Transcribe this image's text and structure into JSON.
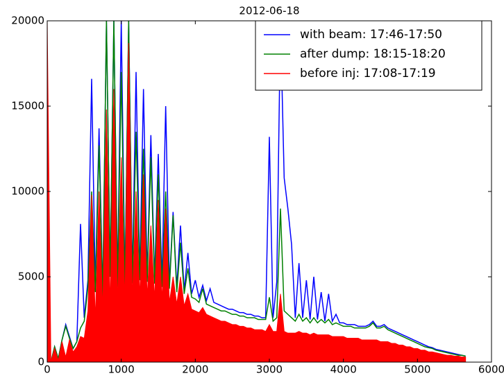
{
  "chart_data": {
    "type": "line",
    "title": "2012-06-18",
    "x": [
      0,
      50,
      100,
      150,
      200,
      250,
      300,
      350,
      400,
      450,
      500,
      550,
      600,
      650,
      700,
      750,
      800,
      850,
      900,
      950,
      1000,
      1050,
      1100,
      1150,
      1200,
      1250,
      1300,
      1350,
      1400,
      1450,
      1500,
      1550,
      1600,
      1650,
      1700,
      1750,
      1800,
      1850,
      1900,
      1950,
      2000,
      2050,
      2100,
      2150,
      2200,
      2250,
      2300,
      2350,
      2400,
      2450,
      2500,
      2550,
      2600,
      2650,
      2700,
      2750,
      2800,
      2850,
      2900,
      2950,
      3000,
      3050,
      3100,
      3150,
      3200,
      3250,
      3300,
      3350,
      3400,
      3450,
      3500,
      3550,
      3600,
      3650,
      3700,
      3750,
      3800,
      3850,
      3900,
      3950,
      4000,
      4050,
      4100,
      4150,
      4200,
      4250,
      4300,
      4350,
      4400,
      4450,
      4500,
      4550,
      4600,
      4650,
      4700,
      4750,
      4800,
      4850,
      4900,
      4950,
      5000,
      5050,
      5100,
      5150,
      5200,
      5250,
      5300,
      5350,
      5400,
      5450,
      5500,
      5550,
      5600,
      5650
    ],
    "series": [
      {
        "name": "with beam: 17:46-17:50",
        "color": "#0000ff",
        "style": "line",
        "values": [
          0,
          0,
          900,
          200,
          1300,
          2200,
          1500,
          800,
          1200,
          8100,
          2600,
          4800,
          16600,
          4400,
          13700,
          4000,
          20000,
          5200,
          20000,
          4700,
          20000,
          4600,
          20000,
          4900,
          17000,
          5000,
          16000,
          5000,
          13300,
          4900,
          12200,
          4700,
          15000,
          4600,
          8800,
          4400,
          8000,
          4200,
          6400,
          4000,
          4800,
          3800,
          4500,
          3600,
          4300,
          3500,
          3400,
          3300,
          3200,
          3100,
          3100,
          3000,
          2900,
          2900,
          2800,
          2800,
          2700,
          2700,
          2600,
          2600,
          13200,
          2600,
          4700,
          20000,
          10800,
          9000,
          6900,
          2600,
          5800,
          2600,
          4800,
          2500,
          5000,
          2500,
          4100,
          2400,
          4000,
          2400,
          2800,
          2300,
          2300,
          2200,
          2200,
          2200,
          2100,
          2100,
          2100,
          2200,
          2400,
          2100,
          2100,
          2200,
          2000,
          1900,
          1800,
          1700,
          1600,
          1500,
          1400,
          1300,
          1200,
          1100,
          1000,
          900,
          850,
          750,
          700,
          650,
          600,
          550,
          500,
          450,
          400,
          350
        ]
      },
      {
        "name": "after dump: 18:15-18:20",
        "color": "#008000",
        "style": "line",
        "values": [
          0,
          0,
          900,
          200,
          1300,
          2100,
          1400,
          800,
          1200,
          2000,
          2400,
          4400,
          10000,
          4100,
          12700,
          3800,
          20000,
          5000,
          20000,
          4400,
          17000,
          4300,
          20000,
          4600,
          13500,
          4800,
          12500,
          4700,
          12000,
          4600,
          11000,
          4400,
          10000,
          4300,
          8600,
          4100,
          7000,
          4000,
          5500,
          3800,
          3700,
          3500,
          4300,
          3400,
          3300,
          3200,
          3100,
          3000,
          3000,
          2900,
          2800,
          2800,
          2700,
          2700,
          2600,
          2600,
          2600,
          2500,
          2500,
          2500,
          3800,
          2400,
          2600,
          9000,
          3000,
          2800,
          2600,
          2400,
          2800,
          2400,
          2600,
          2300,
          2600,
          2300,
          2500,
          2300,
          2500,
          2200,
          2300,
          2200,
          2100,
          2100,
          2100,
          2000,
          2000,
          2000,
          2000,
          2100,
          2300,
          2000,
          2000,
          2100,
          1900,
          1800,
          1700,
          1600,
          1500,
          1400,
          1300,
          1200,
          1100,
          1000,
          900,
          850,
          800,
          700,
          650,
          600,
          550,
          500,
          450,
          400,
          400,
          350
        ]
      },
      {
        "name": "before inj: 17:08-17:19",
        "color": "#ff0000",
        "style": "area",
        "values": [
          20000,
          0,
          800,
          100,
          1200,
          300,
          1300,
          600,
          900,
          1500,
          1400,
          3000,
          9800,
          2500,
          10000,
          3000,
          14800,
          3200,
          16000,
          3400,
          12000,
          3500,
          18700,
          3700,
          10000,
          3800,
          11000,
          3800,
          8000,
          3700,
          9500,
          3600,
          9000,
          3500,
          5000,
          3400,
          5000,
          3300,
          4000,
          3100,
          3000,
          2900,
          3200,
          2800,
          2700,
          2600,
          2500,
          2400,
          2400,
          2300,
          2200,
          2200,
          2100,
          2100,
          2000,
          2000,
          1900,
          1900,
          1900,
          1800,
          2200,
          1800,
          1800,
          4000,
          1800,
          1700,
          1700,
          1700,
          1800,
          1700,
          1700,
          1600,
          1700,
          1600,
          1600,
          1600,
          1600,
          1500,
          1500,
          1500,
          1500,
          1400,
          1400,
          1400,
          1400,
          1300,
          1300,
          1300,
          1300,
          1300,
          1200,
          1200,
          1200,
          1100,
          1100,
          1000,
          1000,
          900,
          900,
          800,
          800,
          700,
          700,
          600,
          600,
          550,
          500,
          450,
          400,
          400,
          350,
          350,
          300,
          300
        ]
      }
    ],
    "xlim": [
      0,
      6000
    ],
    "xticks": [
      0,
      1000,
      2000,
      3000,
      4000,
      5000,
      6000
    ],
    "ylim": [
      0,
      20000
    ],
    "yticks": [
      0,
      5000,
      10000,
      15000,
      20000
    ],
    "legend": "upper right",
    "grid": false
  }
}
